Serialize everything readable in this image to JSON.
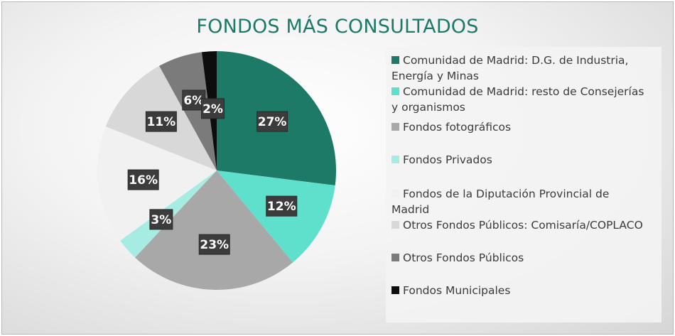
{
  "chart_data": {
    "type": "pie",
    "title": "FONDOS MÁS CONSULTADOS",
    "categories": [
      "Comunidad de Madrid: D.G. de Industria, Energía y Minas",
      "Comunidad de Madrid: resto de Consejerías y organismos",
      "Fondos fotográficos",
      "Fondos Privados",
      "Fondos de la Diputación Provincial de Madrid",
      "Otros Fondos Públicos: Comisaría/COPLACO",
      "Otros Fondos Públicos",
      "Fondos Municipales"
    ],
    "values": [
      27,
      12,
      23,
      3,
      16,
      11,
      6,
      2
    ],
    "labels": [
      "27%",
      "12%",
      "23%",
      "3%",
      "16%",
      "11%",
      "6%",
      "2%"
    ],
    "colors": [
      "#1c7a67",
      "#5fe0cc",
      "#a8a8a8",
      "#a6ece2",
      "#f1f1f1",
      "#d8d8d8",
      "#7b7b7b",
      "#0d0d0d"
    ],
    "legend_position": "right",
    "legend_lines": [
      [
        "Comunidad de Madrid: D.G. de Industria,",
        "Energía y Minas"
      ],
      [
        "Comunidad de Madrid: resto de Consejerías",
        "y organismos"
      ],
      [
        "Fondos fotográficos"
      ],
      [
        "Fondos Privados"
      ],
      [
        "Fondos de la Diputación Provincial de",
        "Madrid"
      ],
      [
        "Otros Fondos Públicos: Comisaría/COPLACO"
      ],
      [
        "Otros Fondos Públicos"
      ],
      [
        "Fondos Municipales"
      ]
    ]
  }
}
